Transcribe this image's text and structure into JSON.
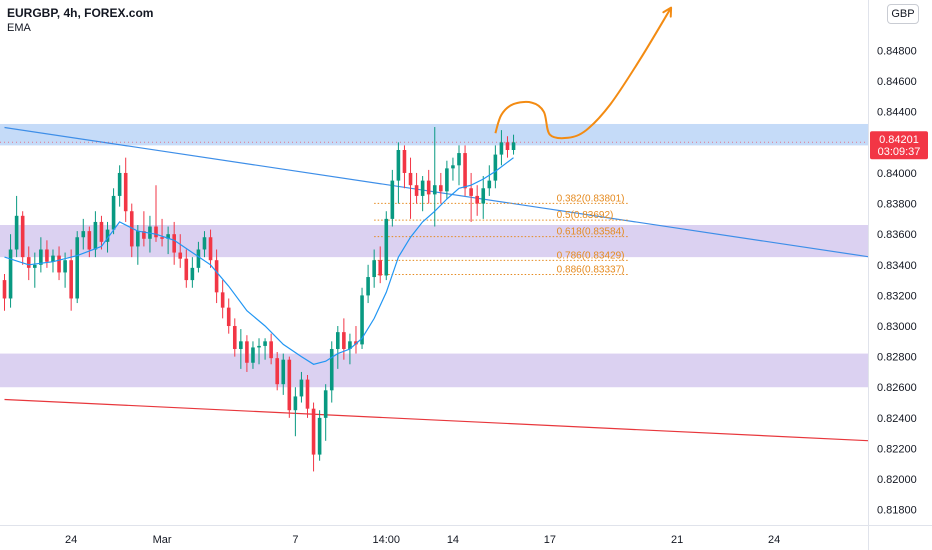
{
  "header": {
    "symbol_line": "EURGBP, 4h, FOREX.com",
    "indicator": "EMA",
    "currency_badge": "GBP"
  },
  "colors": {
    "up": "#089981",
    "down": "#f23645",
    "ema": "#2196f3",
    "resistance_zone": "#bbd5f7",
    "support_zone": "#d5c9ee",
    "trendline_blue": "#3d8ee8",
    "trendline_red": "#e8373c",
    "fib": "#e58a1f",
    "forecast_arrow": "#f38b12",
    "price_tag": "#f23645"
  },
  "price_tag": {
    "price": "0.84201",
    "countdown": "03:09:37"
  },
  "chart_data": {
    "type": "candlestick",
    "instrument": "EURGBP",
    "timeframe": "4h",
    "y_range": [
      0.817,
      0.8513
    ],
    "y_ticks": [
      {
        "value": 0.848,
        "label": "0.84800"
      },
      {
        "value": 0.846,
        "label": "0.84600"
      },
      {
        "value": 0.844,
        "label": "0.84400"
      },
      {
        "value": 0.84,
        "label": "0.84000"
      },
      {
        "value": 0.838,
        "label": "0.83800"
      },
      {
        "value": 0.836,
        "label": "0.83600"
      },
      {
        "value": 0.834,
        "label": "0.83400"
      },
      {
        "value": 0.832,
        "label": "0.83200"
      },
      {
        "value": 0.83,
        "label": "0.83000"
      },
      {
        "value": 0.828,
        "label": "0.82800"
      },
      {
        "value": 0.826,
        "label": "0.82600"
      },
      {
        "value": 0.824,
        "label": "0.82400"
      },
      {
        "value": 0.822,
        "label": "0.82200"
      },
      {
        "value": 0.82,
        "label": "0.82000"
      },
      {
        "value": 0.818,
        "label": "0.81800"
      }
    ],
    "x_range": [
      0,
      143
    ],
    "x_ticks": [
      {
        "x": 11,
        "label": "24"
      },
      {
        "x": 26,
        "label": "Mar"
      },
      {
        "x": 48,
        "label": "7"
      },
      {
        "x": 63,
        "label": "14:00"
      },
      {
        "x": 74,
        "label": "14"
      },
      {
        "x": 90,
        "label": "17"
      },
      {
        "x": 111,
        "label": "21"
      },
      {
        "x": 127,
        "label": "24"
      }
    ],
    "candles": [
      [
        0,
        0.833,
        0.8334,
        0.831,
        0.8318
      ],
      [
        1,
        0.8318,
        0.836,
        0.8312,
        0.835
      ],
      [
        2,
        0.835,
        0.8385,
        0.8345,
        0.8372
      ],
      [
        3,
        0.8372,
        0.8375,
        0.834,
        0.8345
      ],
      [
        4,
        0.8345,
        0.8352,
        0.833,
        0.8338
      ],
      [
        5,
        0.8338,
        0.8348,
        0.8325,
        0.834
      ],
      [
        6,
        0.834,
        0.8358,
        0.8335,
        0.835
      ],
      [
        7,
        0.835,
        0.8356,
        0.8338,
        0.8342
      ],
      [
        8,
        0.8342,
        0.835,
        0.8335,
        0.8346
      ],
      [
        9,
        0.8346,
        0.8352,
        0.833,
        0.8335
      ],
      [
        10,
        0.8335,
        0.8348,
        0.8325,
        0.8343
      ],
      [
        11,
        0.8343,
        0.835,
        0.831,
        0.8318
      ],
      [
        12,
        0.8318,
        0.8362,
        0.8315,
        0.8358
      ],
      [
        13,
        0.8358,
        0.837,
        0.835,
        0.8362
      ],
      [
        14,
        0.8362,
        0.8365,
        0.8345,
        0.835
      ],
      [
        15,
        0.835,
        0.8375,
        0.8345,
        0.8368
      ],
      [
        16,
        0.8368,
        0.8372,
        0.835,
        0.8355
      ],
      [
        17,
        0.8355,
        0.8368,
        0.8348,
        0.8363
      ],
      [
        18,
        0.8363,
        0.839,
        0.836,
        0.8385
      ],
      [
        19,
        0.8385,
        0.8405,
        0.8378,
        0.84
      ],
      [
        20,
        0.84,
        0.841,
        0.8368,
        0.8375
      ],
      [
        21,
        0.8375,
        0.838,
        0.8345,
        0.8352
      ],
      [
        22,
        0.8352,
        0.8366,
        0.834,
        0.8362
      ],
      [
        23,
        0.8362,
        0.8375,
        0.8352,
        0.8357
      ],
      [
        24,
        0.8357,
        0.8372,
        0.8348,
        0.8365
      ],
      [
        25,
        0.8365,
        0.8392,
        0.8355,
        0.8358
      ],
      [
        26,
        0.8358,
        0.837,
        0.8352,
        0.8357
      ],
      [
        27,
        0.8357,
        0.8365,
        0.8347,
        0.836
      ],
      [
        28,
        0.836,
        0.8368,
        0.834,
        0.8348
      ],
      [
        29,
        0.8348,
        0.836,
        0.8338,
        0.8344
      ],
      [
        30,
        0.8344,
        0.835,
        0.8325,
        0.833
      ],
      [
        31,
        0.833,
        0.8345,
        0.8325,
        0.8338
      ],
      [
        32,
        0.8338,
        0.8355,
        0.8335,
        0.835
      ],
      [
        33,
        0.835,
        0.8362,
        0.8345,
        0.8358
      ],
      [
        34,
        0.8358,
        0.8363,
        0.8338,
        0.8343
      ],
      [
        35,
        0.8343,
        0.835,
        0.8315,
        0.8322
      ],
      [
        36,
        0.8322,
        0.833,
        0.8305,
        0.8312
      ],
      [
        37,
        0.8312,
        0.8318,
        0.8295,
        0.83
      ],
      [
        38,
        0.83,
        0.8305,
        0.828,
        0.8285
      ],
      [
        39,
        0.8285,
        0.8298,
        0.8272,
        0.829
      ],
      [
        40,
        0.829,
        0.8294,
        0.827,
        0.8276
      ],
      [
        41,
        0.8276,
        0.829,
        0.8272,
        0.8286
      ],
      [
        42,
        0.8286,
        0.8292,
        0.8275,
        0.8287
      ],
      [
        43,
        0.8287,
        0.8292,
        0.8278,
        0.829
      ],
      [
        44,
        0.829,
        0.8295,
        0.8275,
        0.8279
      ],
      [
        45,
        0.8279,
        0.8283,
        0.8258,
        0.8262
      ],
      [
        46,
        0.8262,
        0.8282,
        0.8255,
        0.8278
      ],
      [
        47,
        0.8278,
        0.828,
        0.824,
        0.8245
      ],
      [
        48,
        0.8245,
        0.826,
        0.8228,
        0.8254
      ],
      [
        49,
        0.8254,
        0.827,
        0.825,
        0.8265
      ],
      [
        50,
        0.8265,
        0.8268,
        0.824,
        0.8246
      ],
      [
        51,
        0.8246,
        0.825,
        0.8205,
        0.8216
      ],
      [
        52,
        0.8216,
        0.8245,
        0.8212,
        0.824
      ],
      [
        53,
        0.824,
        0.8262,
        0.8225,
        0.8258
      ],
      [
        54,
        0.8258,
        0.829,
        0.825,
        0.8285
      ],
      [
        55,
        0.8285,
        0.83,
        0.8272,
        0.8296
      ],
      [
        56,
        0.8296,
        0.8305,
        0.8278,
        0.8285
      ],
      [
        57,
        0.8285,
        0.8295,
        0.8275,
        0.829
      ],
      [
        58,
        0.829,
        0.83,
        0.8282,
        0.8288
      ],
      [
        59,
        0.8288,
        0.8325,
        0.8285,
        0.832
      ],
      [
        60,
        0.832,
        0.834,
        0.8315,
        0.8332
      ],
      [
        61,
        0.8332,
        0.835,
        0.8325,
        0.8343
      ],
      [
        62,
        0.8343,
        0.8352,
        0.8328,
        0.8333
      ],
      [
        63,
        0.8333,
        0.8375,
        0.833,
        0.837
      ],
      [
        64,
        0.837,
        0.8402,
        0.8365,
        0.8395
      ],
      [
        65,
        0.8395,
        0.842,
        0.838,
        0.8415
      ],
      [
        66,
        0.8415,
        0.8418,
        0.839,
        0.84
      ],
      [
        67,
        0.84,
        0.841,
        0.837,
        0.8392
      ],
      [
        68,
        0.8392,
        0.84,
        0.838,
        0.8385
      ],
      [
        69,
        0.8385,
        0.8398,
        0.8375,
        0.8395
      ],
      [
        70,
        0.8395,
        0.8402,
        0.838,
        0.8386
      ],
      [
        71,
        0.8386,
        0.843,
        0.8365,
        0.8392
      ],
      [
        72,
        0.8392,
        0.84,
        0.838,
        0.8388
      ],
      [
        73,
        0.8388,
        0.8408,
        0.8383,
        0.8403
      ],
      [
        74,
        0.8403,
        0.841,
        0.8395,
        0.8405
      ],
      [
        75,
        0.8405,
        0.8418,
        0.8392,
        0.8413
      ],
      [
        76,
        0.8413,
        0.8418,
        0.8385,
        0.839
      ],
      [
        77,
        0.839,
        0.84,
        0.8368,
        0.8385
      ],
      [
        78,
        0.8385,
        0.8392,
        0.8372,
        0.838
      ],
      [
        79,
        0.838,
        0.8398,
        0.837,
        0.839
      ],
      [
        80,
        0.839,
        0.8405,
        0.8385,
        0.8395
      ],
      [
        81,
        0.8395,
        0.8418,
        0.839,
        0.8412
      ],
      [
        82,
        0.8412,
        0.8428,
        0.8405,
        0.842
      ],
      [
        83,
        0.842,
        0.8424,
        0.841,
        0.8415
      ],
      [
        84,
        0.8415,
        0.8425,
        0.8412,
        0.842
      ]
    ],
    "ema": [
      [
        0,
        0.8345
      ],
      [
        4,
        0.834
      ],
      [
        8,
        0.8342
      ],
      [
        12,
        0.8346
      ],
      [
        16,
        0.8352
      ],
      [
        19,
        0.8368
      ],
      [
        22,
        0.8362
      ],
      [
        25,
        0.836
      ],
      [
        28,
        0.8356
      ],
      [
        31,
        0.8348
      ],
      [
        34,
        0.834
      ],
      [
        37,
        0.8326
      ],
      [
        40,
        0.831
      ],
      [
        43,
        0.83
      ],
      [
        46,
        0.8288
      ],
      [
        49,
        0.828
      ],
      [
        51,
        0.8275
      ],
      [
        53,
        0.8277
      ],
      [
        55,
        0.8282
      ],
      [
        57,
        0.8285
      ],
      [
        59,
        0.8292
      ],
      [
        61,
        0.8305
      ],
      [
        63,
        0.8322
      ],
      [
        65,
        0.8345
      ],
      [
        67,
        0.8358
      ],
      [
        69,
        0.8368
      ],
      [
        71,
        0.8375
      ],
      [
        73,
        0.8383
      ],
      [
        75,
        0.839
      ],
      [
        77,
        0.8392
      ],
      [
        79,
        0.8396
      ],
      [
        81,
        0.8401
      ],
      [
        83,
        0.8407
      ],
      [
        84,
        0.841
      ]
    ],
    "zones": [
      {
        "kind": "resistance",
        "from": 0.8418,
        "to": 0.8432
      },
      {
        "kind": "support",
        "from": 0.8345,
        "to": 0.8366
      },
      {
        "kind": "support",
        "from": 0.826,
        "to": 0.8282
      }
    ],
    "trendlines": [
      {
        "kind": "blue",
        "from": [
          0,
          0.84297
        ],
        "to": [
          143,
          0.8345
        ]
      },
      {
        "kind": "red",
        "from": [
          0,
          0.8252
        ],
        "to": [
          143,
          0.8225
        ]
      }
    ],
    "fibonacci": {
      "x_from": 61,
      "x_to": 103,
      "levels": [
        {
          "ratio": "0.382",
          "price": 0.83801,
          "label": "0.382(0.83801)"
        },
        {
          "ratio": "0.5",
          "price": 0.83692,
          "label": "0.5(0.83692)"
        },
        {
          "ratio": "0.618",
          "price": 0.83584,
          "label": "0.618(0.83584)"
        },
        {
          "ratio": "0.786",
          "price": 0.83429,
          "label": "0.786(0.83429)"
        },
        {
          "ratio": "0.886",
          "price": 0.83337,
          "label": "0.886(0.83337)"
        }
      ]
    },
    "forecast_path": [
      [
        81,
        0.8426
      ],
      [
        82,
        0.8438
      ],
      [
        84,
        0.8445
      ],
      [
        87,
        0.8446
      ],
      [
        89,
        0.844
      ],
      [
        90,
        0.8425
      ],
      [
        93,
        0.8423
      ],
      [
        96,
        0.8428
      ],
      [
        100,
        0.8445
      ],
      [
        105,
        0.8475
      ],
      [
        110,
        0.8508
      ]
    ],
    "last_price": 0.84201
  }
}
